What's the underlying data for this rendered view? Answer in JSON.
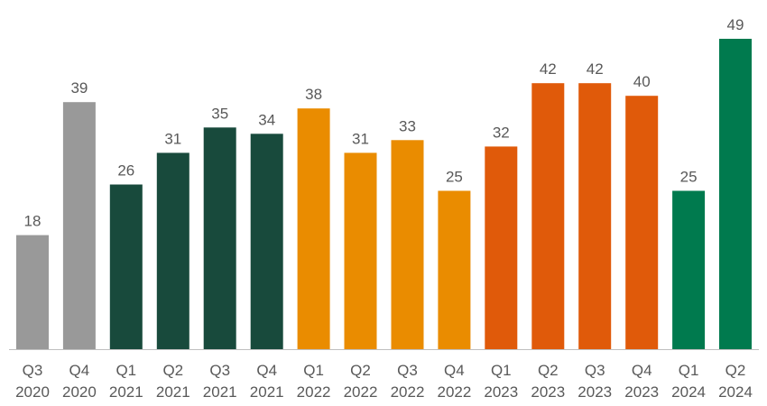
{
  "chart_data": {
    "type": "bar",
    "title": "",
    "xlabel": "",
    "ylabel": "",
    "ylim": [
      0,
      55
    ],
    "grid": false,
    "legend": "none",
    "categories": [
      [
        "Q3",
        "2020"
      ],
      [
        "Q4",
        "2020"
      ],
      [
        "Q1",
        "2021"
      ],
      [
        "Q2",
        "2021"
      ],
      [
        "Q3",
        "2021"
      ],
      [
        "Q4",
        "2021"
      ],
      [
        "Q1",
        "2022"
      ],
      [
        "Q2",
        "2022"
      ],
      [
        "Q3",
        "2022"
      ],
      [
        "Q4",
        "2022"
      ],
      [
        "Q1",
        "2023"
      ],
      [
        "Q2",
        "2023"
      ],
      [
        "Q3",
        "2023"
      ],
      [
        "Q4",
        "2023"
      ],
      [
        "Q1",
        "2024"
      ],
      [
        "Q2",
        "2024"
      ]
    ],
    "values": [
      18,
      39,
      26,
      31,
      35,
      34,
      38,
      31,
      33,
      25,
      32,
      42,
      42,
      40,
      25,
      49
    ],
    "colors": [
      "#999999",
      "#999999",
      "#184a3c",
      "#184a3c",
      "#184a3c",
      "#184a3c",
      "#ea8c00",
      "#ea8c00",
      "#ea8c00",
      "#ea8c00",
      "#e05a0a",
      "#e05a0a",
      "#e05a0a",
      "#e05a0a",
      "#007a4e",
      "#007a4e"
    ],
    "axis_color": "#bfbfbf"
  }
}
